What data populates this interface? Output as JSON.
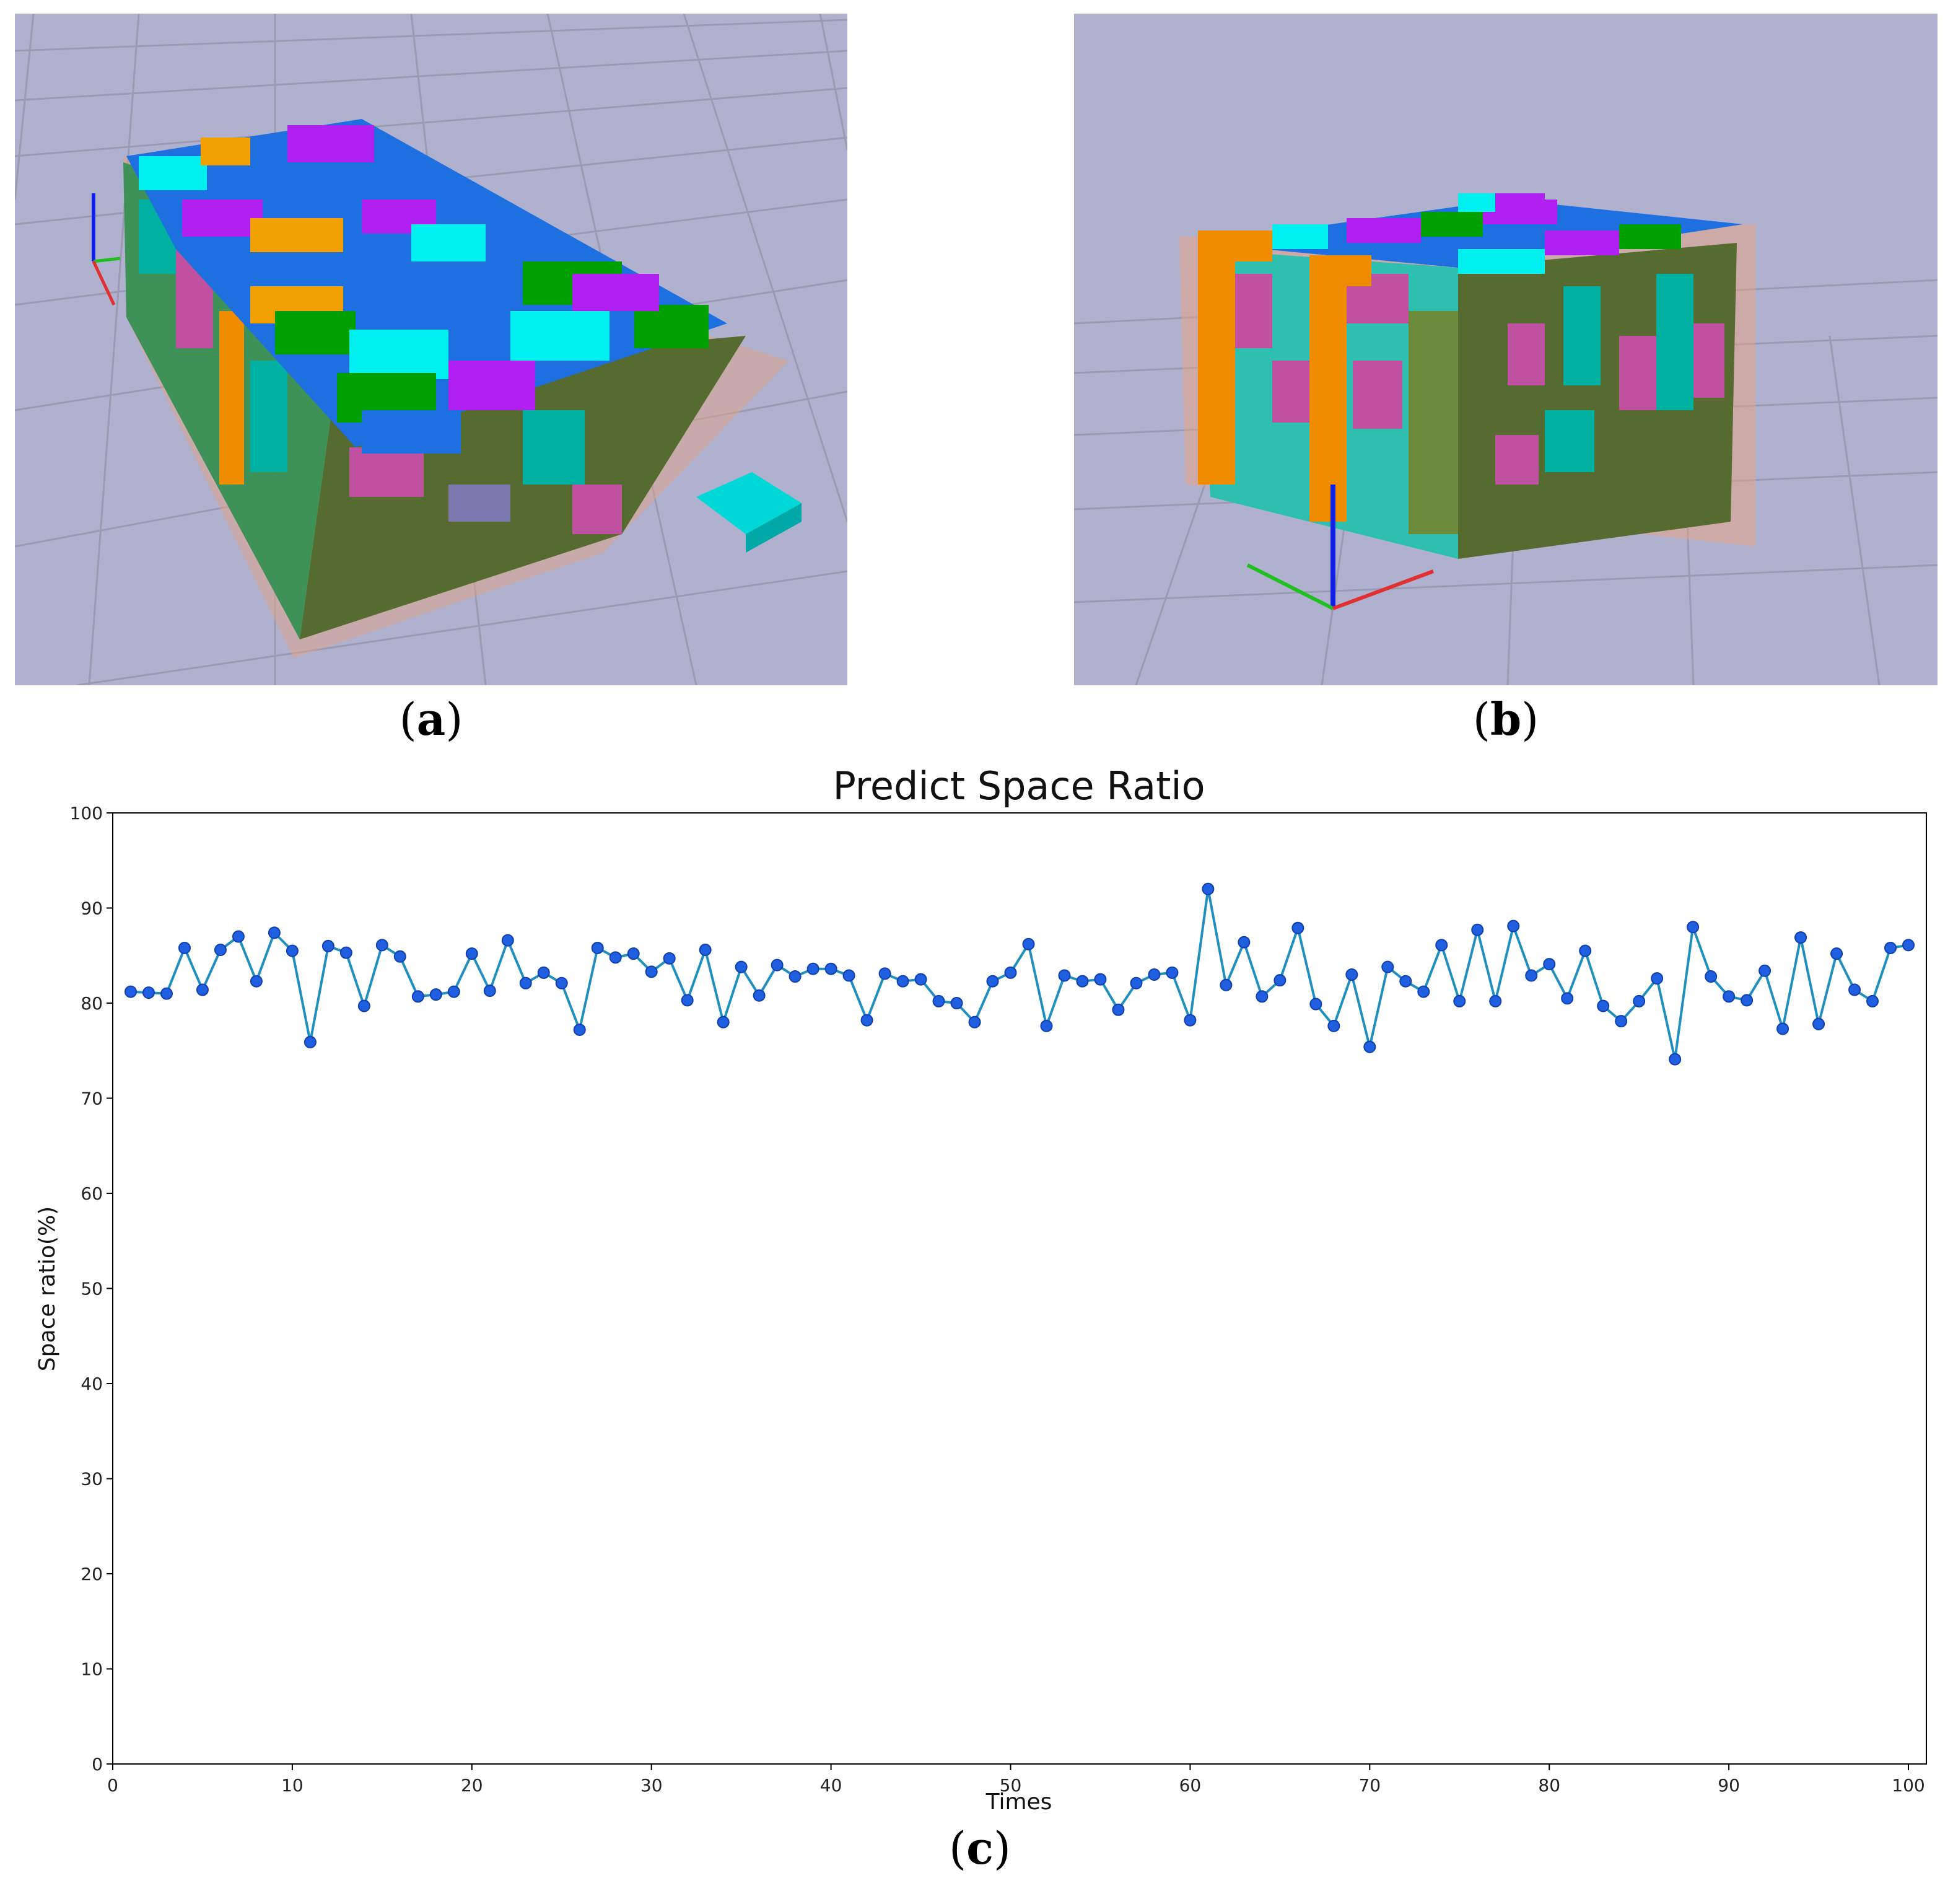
{
  "captions": {
    "a": "a",
    "b": "b",
    "c": "c"
  },
  "scene_colors": {
    "background": "#b0b1cf",
    "grid": "#9a9bb0",
    "container": "#e9a27f",
    "boxes": [
      "#00a000",
      "#1e6fe0",
      "#00f0f0",
      "#b020f0",
      "#f0a000",
      "#556b2f",
      "#00b0a0",
      "#c050a0",
      "#f08c00"
    ],
    "axis_x": "#e03030",
    "axis_y": "#20c020",
    "axis_z": "#1020e0"
  },
  "chart_data": {
    "type": "line",
    "title": "Predict Space Ratio",
    "xlabel": "Times",
    "ylabel": "Space ratio(%)",
    "xlim": [
      0,
      101
    ],
    "ylim": [
      0,
      100
    ],
    "xticks": [
      0,
      10,
      20,
      30,
      40,
      50,
      60,
      70,
      80,
      90,
      100
    ],
    "yticks": [
      0,
      10,
      20,
      30,
      40,
      50,
      60,
      70,
      80,
      90,
      100
    ],
    "grid": false,
    "line_color": "#1f8fc0",
    "marker_color": "#1f5fe0",
    "x": [
      1,
      2,
      3,
      4,
      5,
      6,
      7,
      8,
      9,
      10,
      11,
      12,
      13,
      14,
      15,
      16,
      17,
      18,
      19,
      20,
      21,
      22,
      23,
      24,
      25,
      26,
      27,
      28,
      29,
      30,
      31,
      32,
      33,
      34,
      35,
      36,
      37,
      38,
      39,
      40,
      41,
      42,
      43,
      44,
      45,
      46,
      47,
      48,
      49,
      50,
      51,
      52,
      53,
      54,
      55,
      56,
      57,
      58,
      59,
      60,
      61,
      62,
      63,
      64,
      65,
      66,
      67,
      68,
      69,
      70,
      71,
      72,
      73,
      74,
      75,
      76,
      77,
      78,
      79,
      80,
      81,
      82,
      83,
      84,
      85,
      86,
      87,
      88,
      89,
      90,
      91,
      92,
      93,
      94,
      95,
      96,
      97,
      98,
      99,
      100
    ],
    "y": [
      81.2,
      81.1,
      81.0,
      85.8,
      81.4,
      85.6,
      87.0,
      82.3,
      87.4,
      85.5,
      75.9,
      86.0,
      85.3,
      79.7,
      86.1,
      84.9,
      80.7,
      80.9,
      81.2,
      85.2,
      81.3,
      86.6,
      82.1,
      83.2,
      82.1,
      77.2,
      85.8,
      84.8,
      85.2,
      83.3,
      84.7,
      80.3,
      85.6,
      78.0,
      83.8,
      80.8,
      84.0,
      82.8,
      83.6,
      83.6,
      82.9,
      78.2,
      83.1,
      82.3,
      82.5,
      80.2,
      80.0,
      78.0,
      82.3,
      83.2,
      86.2,
      77.6,
      82.9,
      82.3,
      82.5,
      79.3,
      82.1,
      83.0,
      83.2,
      78.2,
      92.0,
      81.9,
      86.4,
      80.7,
      82.4,
      87.9,
      79.9,
      77.6,
      83.0,
      75.4,
      83.8,
      82.3,
      81.2,
      86.1,
      80.2,
      87.7,
      80.2,
      88.1,
      82.9,
      84.1,
      80.5,
      85.5,
      79.7,
      78.1,
      80.2,
      82.6,
      74.1,
      88.0,
      82.8,
      80.7,
      80.3,
      83.4,
      77.3,
      86.9,
      77.8,
      85.2,
      81.4,
      80.2,
      85.8,
      86.1
    ]
  }
}
